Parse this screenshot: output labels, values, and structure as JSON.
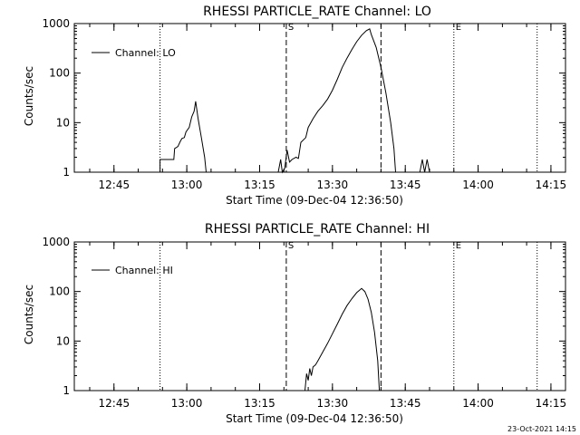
{
  "chart_data": [
    {
      "type": "line",
      "title": "RHESSI PARTICLE_RATE Channel: LO",
      "xlabel": "Start Time (09-Dec-04 12:36:50)",
      "ylabel": "Counts/sec",
      "yscale": "log",
      "ylim": [
        1,
        1000
      ],
      "yticks": [
        "1",
        "10",
        "100",
        "1000"
      ],
      "xlim": [
        "12:36:50",
        "14:18:00"
      ],
      "xticks": [
        "12:45",
        "13:00",
        "13:15",
        "13:30",
        "13:45",
        "14:00",
        "14:15"
      ],
      "grid": false,
      "legend": "top-left",
      "vlines": [
        {
          "time": "12:54:30",
          "style": "dotted",
          "label": ""
        },
        {
          "time": "13:20:30",
          "style": "dashed",
          "label": "S"
        },
        {
          "time": "13:40:00",
          "style": "dashed",
          "label": ""
        },
        {
          "time": "13:55:00",
          "style": "dotted",
          "label": "E"
        },
        {
          "time": "14:12:10",
          "style": "dotted",
          "label": ""
        }
      ],
      "series": [
        {
          "name": "Channel: LO",
          "segments": [
            [
              [
                "12:54:30",
                1.0
              ],
              [
                "12:54:30",
                1.8
              ],
              [
                "12:57:20",
                1.8
              ],
              [
                "12:57:30",
                3.0
              ],
              [
                "12:58:10",
                3.3
              ],
              [
                "12:58:40",
                4.2
              ],
              [
                "12:59:00",
                4.8
              ],
              [
                "12:59:30",
                5.0
              ],
              [
                "12:59:50",
                6.5
              ],
              [
                "13:00:30",
                8.0
              ],
              [
                "13:01:00",
                13
              ],
              [
                "13:01:30",
                17
              ],
              [
                "13:01:50",
                27
              ],
              [
                "13:02:20",
                12
              ],
              [
                "13:03:00",
                5
              ],
              [
                "13:03:40",
                2
              ],
              [
                "13:04:00",
                1.0
              ]
            ],
            [
              [
                "13:18:50",
                1.0
              ],
              [
                "13:19:20",
                1.8
              ],
              [
                "13:19:40",
                1.0
              ],
              [
                "13:20:10",
                1.2
              ],
              [
                "13:20:40",
                2.8
              ],
              [
                "13:21:10",
                1.6
              ],
              [
                "13:21:40",
                1.8
              ],
              [
                "13:22:30",
                2.0
              ],
              [
                "13:23:00",
                1.9
              ],
              [
                "13:23:30",
                4
              ],
              [
                "13:24:30",
                5
              ],
              [
                "13:25:00",
                8
              ],
              [
                "13:26:00",
                12
              ],
              [
                "13:27:00",
                17
              ],
              [
                "13:28:00",
                22
              ],
              [
                "13:29:00",
                30
              ],
              [
                "13:30:00",
                45
              ],
              [
                "13:31:00",
                75
              ],
              [
                "13:32:00",
                130
              ],
              [
                "13:33:00",
                200
              ],
              [
                "13:34:00",
                300
              ],
              [
                "13:35:00",
                430
              ],
              [
                "13:36:00",
                580
              ],
              [
                "13:37:00",
                720
              ],
              [
                "13:37:40",
                780
              ],
              [
                "13:38:00",
                600
              ],
              [
                "13:39:00",
                330
              ],
              [
                "13:40:00",
                130
              ],
              [
                "13:41:00",
                40
              ],
              [
                "13:42:00",
                10
              ],
              [
                "13:42:40",
                3
              ],
              [
                "13:43:00",
                1.0
              ]
            ],
            [
              [
                "13:48:00",
                1.0
              ],
              [
                "13:48:30",
                1.8
              ],
              [
                "13:49:00",
                1.0
              ],
              [
                "13:49:30",
                1.8
              ],
              [
                "13:50:00",
                1.0
              ]
            ]
          ]
        }
      ]
    },
    {
      "type": "line",
      "title": "RHESSI PARTICLE_RATE Channel: HI",
      "xlabel": "Start Time (09-Dec-04 12:36:50)",
      "ylabel": "Counts/sec",
      "yscale": "log",
      "ylim": [
        1,
        1000
      ],
      "yticks": [
        "1",
        "10",
        "100",
        "1000"
      ],
      "xlim": [
        "12:36:50",
        "14:18:00"
      ],
      "xticks": [
        "12:45",
        "13:00",
        "13:15",
        "13:30",
        "13:45",
        "14:00",
        "14:15"
      ],
      "grid": false,
      "legend": "top-left",
      "vlines": [
        {
          "time": "12:54:30",
          "style": "dotted",
          "label": ""
        },
        {
          "time": "13:20:30",
          "style": "dashed",
          "label": "S"
        },
        {
          "time": "13:40:00",
          "style": "dashed",
          "label": ""
        },
        {
          "time": "13:55:00",
          "style": "dotted",
          "label": "E"
        },
        {
          "time": "14:12:10",
          "style": "dotted",
          "label": ""
        }
      ],
      "series": [
        {
          "name": "Channel: HI",
          "segments": [
            [
              [
                "13:24:20",
                1.0
              ],
              [
                "13:24:40",
                2.2
              ],
              [
                "13:25:00",
                1.6
              ],
              [
                "13:25:20",
                2.8
              ],
              [
                "13:25:40",
                2.0
              ],
              [
                "13:26:00",
                3.0
              ],
              [
                "13:26:30",
                3.3
              ],
              [
                "13:27:00",
                4
              ],
              [
                "13:28:00",
                6
              ],
              [
                "13:29:00",
                9
              ],
              [
                "13:30:00",
                14
              ],
              [
                "13:31:00",
                22
              ],
              [
                "13:32:00",
                35
              ],
              [
                "13:33:00",
                52
              ],
              [
                "13:34:00",
                72
              ],
              [
                "13:35:00",
                95
              ],
              [
                "13:36:00",
                115
              ],
              [
                "13:36:40",
                100
              ],
              [
                "13:37:20",
                70
              ],
              [
                "13:38:00",
                38
              ],
              [
                "13:38:40",
                15
              ],
              [
                "13:39:20",
                4
              ],
              [
                "13:39:40",
                1.0
              ]
            ]
          ]
        }
      ]
    }
  ],
  "footer": {
    "stamp": "23-Oct-2021 14:15"
  }
}
